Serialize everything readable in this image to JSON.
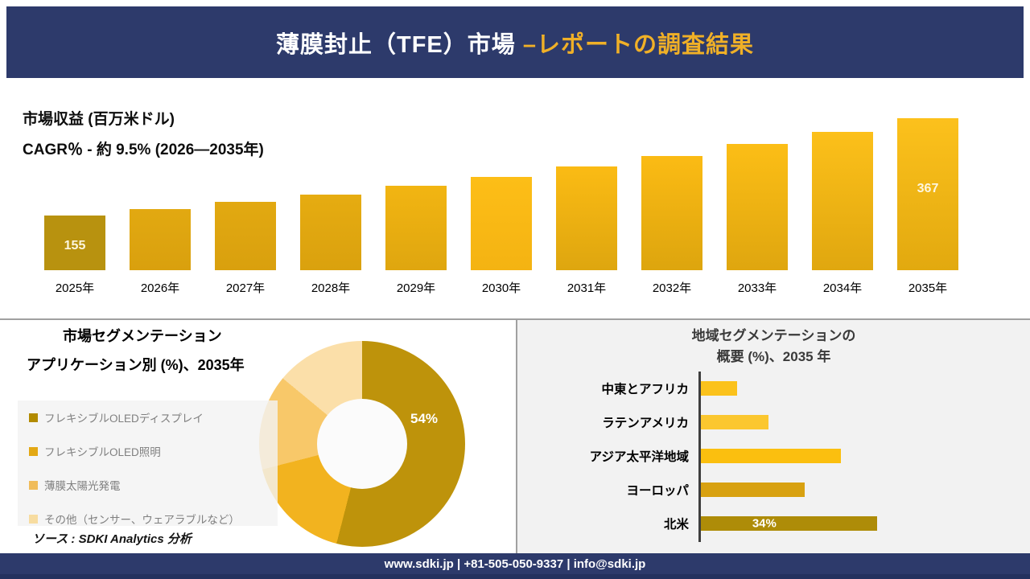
{
  "header": {
    "title_white": "薄膜封止（TFE）市場 ",
    "title_gold": "–レポートの調査結果"
  },
  "revenue": {
    "metric": "市場収益 (百万米ドル)",
    "cagr": "CAGR％ - 約 9.5% (2026―2035年)"
  },
  "segmentation": {
    "title": "市場セグメンテーション",
    "subtitle": "アプリケーション別 (%)、2035年",
    "source": "ソース : SDKI Analytics 分析"
  },
  "region": {
    "title_line1": "地域セグメンテーションの",
    "title_line2": "概要 (%)、2035 年"
  },
  "footer": {
    "text": "www.sdki.jp | +81-505-050-9337 | info@sdki.jp"
  },
  "colors": {
    "navy": "#2D3A6B",
    "gold_accent": "#F0B027",
    "panel_gray": "#F2F2F2"
  },
  "chart_data": [
    {
      "type": "bar",
      "title": "市場収益 (百万米ドル)",
      "subtitle": "CAGR％ - 約 9.5% (2026―2035年)",
      "categories": [
        "2025年",
        "2026年",
        "2027年",
        "2028年",
        "2029年",
        "2030年",
        "2031年",
        "2032年",
        "2033年",
        "2034年",
        "2035年"
      ],
      "values": [
        155,
        169,
        184,
        201,
        219,
        239,
        261,
        285,
        311,
        338,
        367
      ],
      "labeled_points_note": "only 155 (2025) and 367 (2035) are printed on the chart; other values estimated from bar heights",
      "value_labels": [
        {
          "index": 0,
          "text": "155"
        },
        {
          "index": 10,
          "text": "367"
        }
      ],
      "bar_colors": [
        [
          "#B8920F",
          "#B8920F"
        ],
        [
          "#E2A911",
          "#D9A00E"
        ],
        [
          "#E2A911",
          "#D9A00E"
        ],
        [
          "#E6AC11",
          "#DAA10E"
        ],
        [
          "#F2B512",
          "#DFA60F"
        ],
        [
          "#FDBE17",
          "#F4B312"
        ],
        [
          "#FBBB14",
          "#DEA60F"
        ],
        [
          "#FBBB14",
          "#DDA50E"
        ],
        [
          "#FCBE16",
          "#DFA60F"
        ],
        [
          "#FCC01A",
          "#E0A70F"
        ],
        [
          "#FCC11C",
          "#E2A90F"
        ]
      ],
      "ylim": [
        155,
        367
      ],
      "grid": false,
      "legend": false
    },
    {
      "type": "donut",
      "title": "市場セグメンテーション",
      "subtitle": "アプリケーション別 (%)、2035年",
      "slices": [
        {
          "label": "フレキシブルOLEDディスプレイ",
          "value": 54,
          "color": "#BE930B",
          "swatch": "#B28B00",
          "label_text": "54%"
        },
        {
          "label": "フレキシブルOLED照明",
          "value": 17,
          "color": "#F2B31F",
          "swatch": "#E3A814"
        },
        {
          "label": "薄膜太陽光発電",
          "value": 15,
          "color": "#F8C869",
          "swatch": "#F0BC5A"
        },
        {
          "label": "その他（センサー、ウェアラブルなど）",
          "value": 14,
          "color": "#FBDFA9",
          "swatch": "#F7DCA0"
        }
      ],
      "labeled_points_note": "only 54% is printed on the donut; other slice values estimated from arc angles",
      "legend_position": "left"
    },
    {
      "type": "bar-horizontal",
      "title": "地域セグメンテーションの 概要 (%)、2035 年",
      "categories": [
        "中東とアフリカ",
        "ラテンアメリカ",
        "アジア太平洋地域",
        "ヨーロッパ",
        "北米"
      ],
      "values": [
        7,
        13,
        27,
        20,
        34
      ],
      "colors": [
        "#FBC21C",
        "#FBC72F",
        "#FBBF0F",
        "#D8A111",
        "#AE8C08"
      ],
      "labeled_points_note": "only 34% (北米) is printed; other values estimated from bar lengths",
      "value_labels": [
        {
          "index": 4,
          "text": "34%"
        }
      ],
      "grid": false
    }
  ]
}
